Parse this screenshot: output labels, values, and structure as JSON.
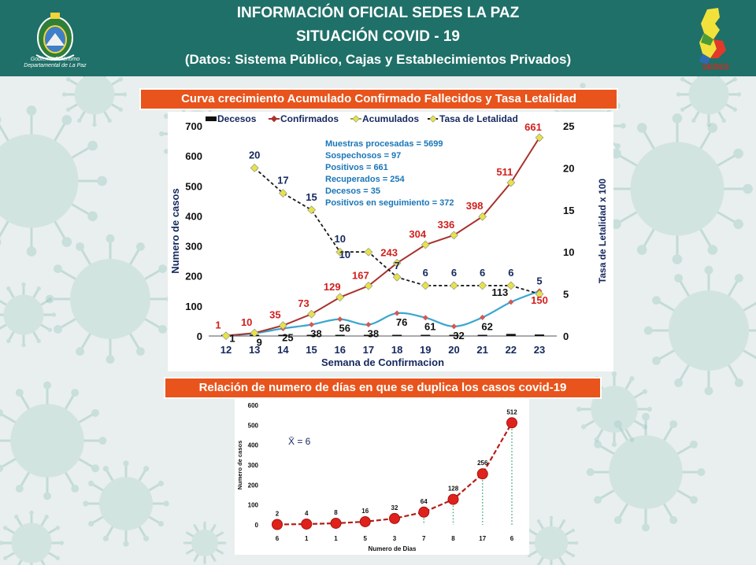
{
  "header": {
    "title_line1": "INFORMACIÓN OFICIAL SEDES LA PAZ",
    "title_line2": "SITUACIÓN  COVID - 19",
    "title_line3": "(Datos: Sistema Público, Cajas y Establecimientos Privados)",
    "seal_caption_1": "Gobierno Autónomo",
    "seal_caption_2": "Departamental de La Paz",
    "logo_text": "SEDES"
  },
  "banner1": "Curva crecimiento Acumulado Confirmado Fallecidos y Tasa Letalidad",
  "banner2": "Relación de numero de días en que se duplica los casos covid-19",
  "colors": {
    "header_bg": "#1f7068",
    "banner_bg": "#e8541c",
    "confirmados": "#a8322c",
    "acumulados": "#9aa83a",
    "letalidad": "#1a1a1a",
    "casos_semana": "#3aa6cf",
    "label_red": "#d1201e",
    "label_navy": "#15285e",
    "doubling_line": "#b51d18"
  },
  "chart_data": [
    {
      "type": "line",
      "x_title": "Semana de Confirmacion",
      "y_title": "Numero de casos",
      "y2_title": "Tasa de Letalidad x 100",
      "x": [
        12,
        13,
        14,
        15,
        16,
        17,
        18,
        19,
        20,
        21,
        22,
        23
      ],
      "ylim": [
        0,
        700
      ],
      "yticks": [
        0,
        100,
        200,
        300,
        400,
        500,
        600,
        700
      ],
      "y2lim": [
        0,
        25
      ],
      "y2ticks": [
        0,
        5,
        10,
        15,
        20,
        25
      ],
      "legend": [
        "Decesos",
        "Confirmados",
        "Acumulados",
        "Tasa de Letalidad"
      ],
      "series": [
        {
          "name": "Confirmados",
          "axis": "left",
          "values": [
            1,
            10,
            35,
            73,
            129,
            167,
            243,
            304,
            336,
            398,
            511,
            661
          ]
        },
        {
          "name": "Acumulados",
          "axis": "left",
          "values": [
            1,
            10,
            35,
            73,
            129,
            167,
            243,
            304,
            336,
            398,
            511,
            661
          ]
        },
        {
          "name": "",
          "axis": "left",
          "values": [
            1,
            9,
            25,
            38,
            56,
            38,
            76,
            61,
            32,
            62,
            113,
            150
          ]
        },
        {
          "name": "Tasa de Letalidad",
          "axis": "right",
          "x": [
            13,
            14,
            15,
            16,
            17,
            18,
            19,
            20,
            21,
            22,
            23
          ],
          "values": [
            20,
            17,
            15,
            10,
            10,
            7,
            6,
            6,
            6,
            6,
            5
          ]
        },
        {
          "name": "Decesos",
          "axis": "left",
          "values": [
            0,
            0,
            1,
            1,
            1,
            1,
            1,
            1,
            3,
            3,
            7,
            5
          ]
        }
      ],
      "weekly_labels": [
        "1",
        "9",
        "25",
        "38",
        "56",
        "38",
        "76",
        "61",
        "32",
        "62",
        "113",
        "150"
      ],
      "letalidad_labels": [
        "20",
        "17",
        "15",
        "10",
        "10",
        "7",
        "6",
        "6",
        "6",
        "6",
        "5"
      ],
      "acum_labels": [
        "1",
        "10",
        "35",
        "73",
        "129",
        "167",
        "243",
        "304",
        "336",
        "398",
        "511",
        "661"
      ],
      "info_box": [
        "Muestras procesadas = 5699",
        "Sospechosos  = 97",
        "Positivos = 661",
        "Recuperados = 254",
        "Decesos = 35",
        "Positivos en seguimiento = 372"
      ]
    },
    {
      "type": "line",
      "title": "",
      "x_title": "Numero de Dias",
      "y_title": "Numero de casos",
      "categories": [
        "6",
        "1",
        "1",
        "5",
        "3",
        "7",
        "8",
        "17",
        "6"
      ],
      "values": [
        2,
        4,
        8,
        16,
        32,
        64,
        128,
        256,
        512
      ],
      "value_labels": [
        "2",
        "4",
        "8",
        "16",
        "32",
        "64",
        "128",
        "256",
        "512"
      ],
      "ylim": [
        0,
        600
      ],
      "yticks": [
        0,
        100,
        200,
        300,
        400,
        500,
        600
      ],
      "annotation": "X̄ = 6"
    }
  ]
}
